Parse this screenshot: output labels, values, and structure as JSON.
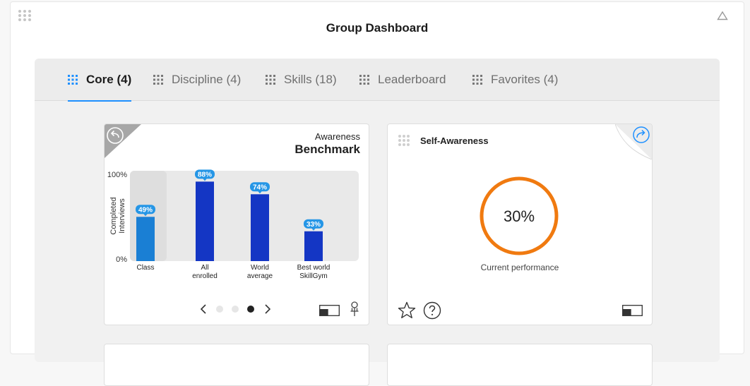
{
  "dashboard": {
    "title": "Group Dashboard"
  },
  "tabs": [
    {
      "label": "Core (4)",
      "active": true
    },
    {
      "label": "Discipline (4)",
      "active": false
    },
    {
      "label": "Skills (18)",
      "active": false
    },
    {
      "label": "Leaderboard",
      "active": false
    },
    {
      "label": "Favorites (4)",
      "active": false
    }
  ],
  "benchmark_card": {
    "subtitle": "Awareness",
    "title": "Benchmark",
    "pager": {
      "pages": 3,
      "current": 3
    },
    "chart_data": {
      "type": "bar",
      "categories": [
        [
          "Class"
        ],
        [
          "All",
          "enrolled"
        ],
        [
          "World",
          "average"
        ],
        [
          "Best world",
          "SkillGym"
        ]
      ],
      "values": [
        49,
        88,
        74,
        33
      ],
      "value_labels": [
        "49%",
        "88%",
        "74%",
        "33%"
      ],
      "ylabel": [
        "Completed",
        "Interviews"
      ],
      "yticks": [
        "100%",
        "0%"
      ],
      "ylim": [
        0,
        100
      ],
      "grid": false,
      "colors": {
        "class_bar": "#1a7fd4",
        "other_bars": "#1436c4",
        "label_bg": "#2596e6",
        "plot_bg": "#e9e9e9",
        "highlight_bg": "#dedede"
      }
    }
  },
  "self_awareness_card": {
    "title": "Self-Awareness",
    "value": 30,
    "value_label": "30%",
    "caption": "Current performance",
    "ring_color": "#f07a10"
  },
  "icons": {
    "accent": "#1e90ff",
    "drag": "drag-grip-icon",
    "collapse": "triangle-up-icon",
    "back": "undo-icon",
    "share": "share-icon",
    "favorite": "star-icon",
    "help": "question-icon",
    "toggle": "layout-toggle-icon",
    "pin": "pin-icon"
  }
}
